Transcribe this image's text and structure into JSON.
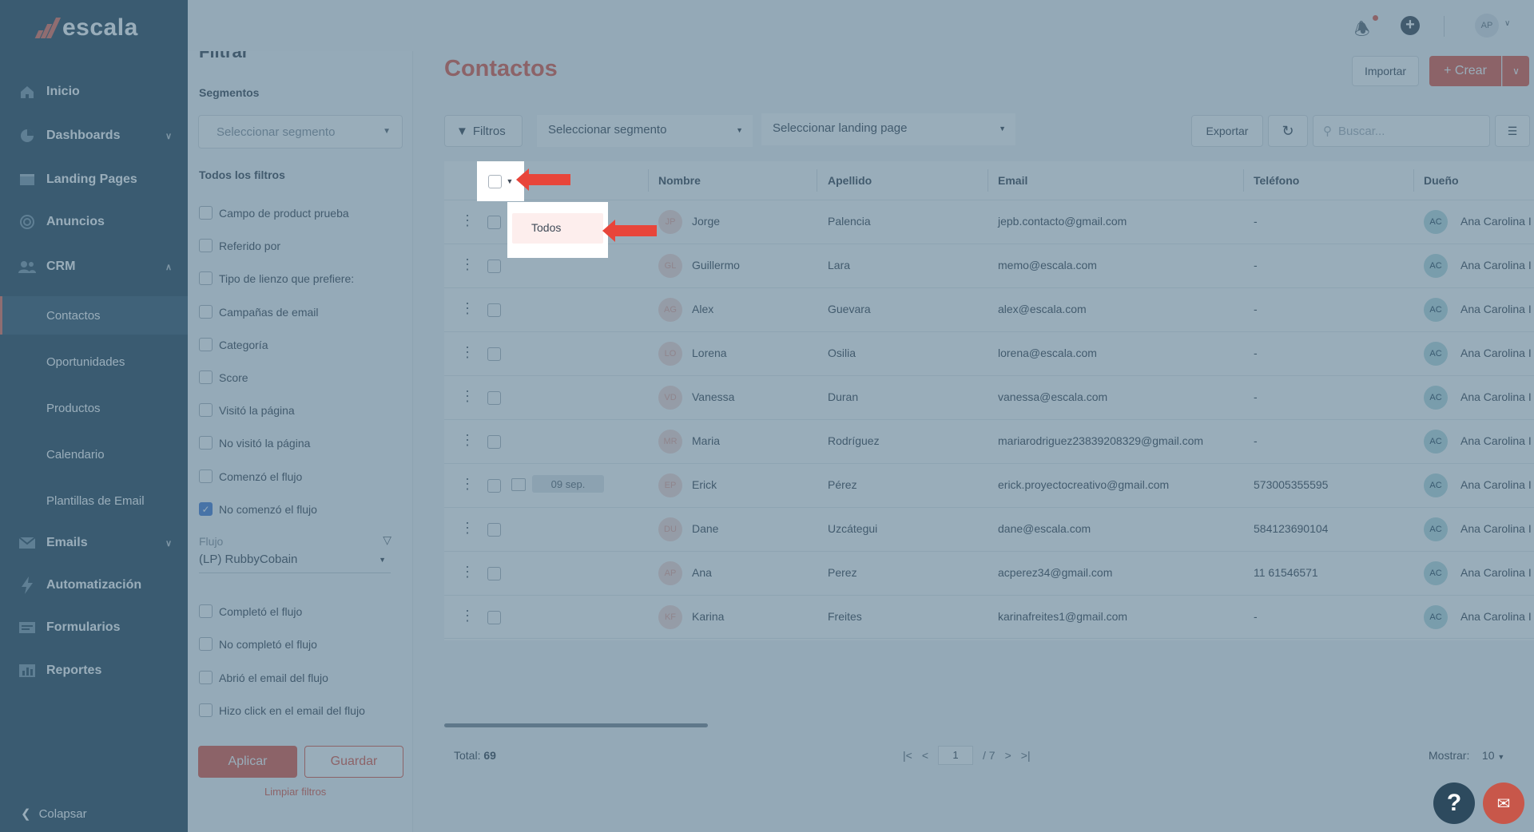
{
  "brand": {
    "name": "escala",
    "accent": "#e25c4a"
  },
  "sidebar": {
    "items": [
      {
        "label": "Inicio",
        "icon": "home-icon"
      },
      {
        "label": "Dashboards",
        "icon": "pie-chart-icon"
      },
      {
        "label": "Landing Pages",
        "icon": "page-icon"
      },
      {
        "label": "Anuncios",
        "icon": "megaphone-icon"
      },
      {
        "label": "CRM",
        "icon": "users-icon"
      }
    ],
    "crm_sub": [
      "Contactos",
      "Oportunidades",
      "Productos",
      "Calendario",
      "Plantillas de Email"
    ],
    "items_bottom": [
      {
        "label": "Emails",
        "icon": "mail-icon"
      },
      {
        "label": "Automatización",
        "icon": "bolt-icon"
      },
      {
        "label": "Formularios",
        "icon": "form-icon"
      },
      {
        "label": "Reportes",
        "icon": "bar-chart-icon"
      }
    ],
    "collapse_label": "Colapsar"
  },
  "filter_panel": {
    "title": "Filtrar",
    "segments_label": "Segmentos",
    "segment_placeholder": "Seleccionar segmento",
    "all_filters_label": "Todos los filtros",
    "checks": [
      "Campo de product prueba",
      "Referido por",
      "Tipo de lienzo que prefiere:",
      "Campañas de email",
      "Categoría",
      "Score",
      "Visitó la página",
      "No visitó la página",
      "Comenzó el flujo",
      "No comenzó el flujo"
    ],
    "flow_label": "Flujo",
    "flow_value": "(LP) RubbyCobain",
    "checks2": [
      "Completó el flujo",
      "No completó el flujo",
      "Abrió el email del flujo",
      "Hizo click en el email del flujo"
    ],
    "apply_label": "Aplicar",
    "save_label": "Guardar",
    "clear_label": "Limpiar filtros"
  },
  "topbar": {
    "avatar": "AP"
  },
  "main": {
    "title": "Contactos",
    "import_label": "Importar",
    "create_label": "+ Crear",
    "filters_label": "Filtros",
    "segment_select": "Seleccionar segmento",
    "landing_select": "Seleccionar landing page",
    "export_label": "Exportar",
    "search_placeholder": "Buscar..."
  },
  "table": {
    "headers": [
      "Nombre",
      "Apellido",
      "Email",
      "Teléfono",
      "Dueño"
    ],
    "rows": [
      {
        "ini": "JP",
        "first": "Jorge",
        "last": "Palencia",
        "email": "jepb.contacto@gmail.com",
        "phone": "-",
        "owner_ini": "AC",
        "owner": "Ana Carolina I"
      },
      {
        "ini": "GL",
        "first": "Guillermo",
        "last": "Lara",
        "email": "memo@escala.com",
        "phone": "-",
        "owner_ini": "AC",
        "owner": "Ana Carolina I"
      },
      {
        "ini": "AG",
        "first": "Alex",
        "last": "Guevara",
        "email": "alex@escala.com",
        "phone": "-",
        "owner_ini": "AC",
        "owner": "Ana Carolina I"
      },
      {
        "ini": "LO",
        "first": "Lorena",
        "last": "Osilia",
        "email": "lorena@escala.com",
        "phone": "-",
        "owner_ini": "AC",
        "owner": "Ana Carolina I"
      },
      {
        "ini": "VD",
        "first": "Vanessa",
        "last": "Duran",
        "email": "vanessa@escala.com",
        "phone": "-",
        "owner_ini": "AC",
        "owner": "Ana Carolina I"
      },
      {
        "ini": "MR",
        "first": "Maria",
        "last": "Rodríguez",
        "email": "mariarodriguez23839208329@gmail.com",
        "phone": "-",
        "owner_ini": "AC",
        "owner": "Ana Carolina I"
      },
      {
        "ini": "EP",
        "first": "Erick",
        "last": "Pérez",
        "email": "erick.proyectocreativo@gmail.com",
        "phone": "573005355595",
        "owner_ini": "AC",
        "owner": "Ana Carolina I",
        "date": "09 sep."
      },
      {
        "ini": "DU",
        "first": "Dane",
        "last": "Uzcátegui",
        "email": "dane@escala.com",
        "phone": "584123690104",
        "owner_ini": "AC",
        "owner": "Ana Carolina I"
      },
      {
        "ini": "AP",
        "first": "Ana",
        "last": "Perez",
        "email": "acperez34@gmail.com",
        "phone": "11 61546571",
        "owner_ini": "AC",
        "owner": "Ana Carolina I"
      },
      {
        "ini": "KF",
        "first": "Karina",
        "last": "Freites",
        "email": "karinafreites1@gmail.com",
        "phone": "-",
        "owner_ini": "AC",
        "owner": "Ana Carolina I"
      }
    ]
  },
  "footer": {
    "total_label": "Total:",
    "total_value": "69",
    "page": "1",
    "pages": "/ 7",
    "show_label": "Mostrar:",
    "show_value": "10"
  },
  "dropdown": {
    "option": "Todos"
  }
}
